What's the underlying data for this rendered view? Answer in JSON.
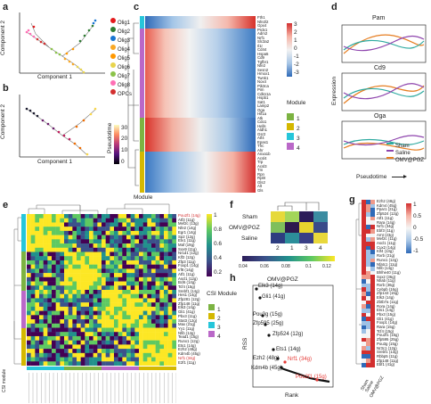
{
  "panels": {
    "a": {
      "letter": "a",
      "x_label": "Component 1",
      "y_label": "Component 2",
      "legend": [
        {
          "name": "Olig1",
          "color": "#e41a1c"
        },
        {
          "name": "Olig2",
          "color": "#2e7d32"
        },
        {
          "name": "Olig3",
          "color": "#1976d2"
        },
        {
          "name": "Olig4",
          "color": "#f9a825"
        },
        {
          "name": "Olig5",
          "color": "#ff9800"
        },
        {
          "name": "Olig6",
          "color": "#e8d44d"
        },
        {
          "name": "Olig7",
          "color": "#8bc34a"
        },
        {
          "name": "Olig8",
          "color": "#ff6fb5"
        },
        {
          "name": "OPCs",
          "color": "#d32f2f"
        }
      ]
    },
    "b": {
      "letter": "b",
      "x_label": "Component 1",
      "y_label": "Component 2",
      "colorbar_title": "Pseudotime",
      "colorbar_ticks": [
        "0",
        "10",
        "20",
        "30"
      ]
    },
    "c": {
      "letter": "c",
      "module_axis_label": "Module",
      "colorbar_ticks": [
        "3",
        "2",
        "1",
        "0",
        "-1",
        "-2",
        "-3"
      ],
      "legend_title": "Module",
      "modules": [
        {
          "name": "1",
          "color": "#7cb342"
        },
        {
          "name": "2",
          "color": "#d4b800"
        },
        {
          "name": "3",
          "color": "#26c6da"
        },
        {
          "name": "4",
          "color": "#ba68c8"
        }
      ],
      "genes": [
        "Fth1",
        "Nfe2l2",
        "Gpx4",
        "Prdx1",
        "Adm2",
        "Nrf1",
        "Slc3a2",
        "Il1r",
        "Cd44",
        "Hspa5",
        "Cd9",
        "Tgfbr1",
        "Nfe2",
        "Sesn2",
        "Hmox1",
        "Twnk1",
        "Nox4",
        "Pik3ca",
        "Pim",
        "Cdkn1a",
        "Hspb1",
        "Sat1",
        "Lamp2",
        "Oga",
        "Hif1a",
        "Atk",
        "Cdo1",
        "Hells",
        "Aldh1",
        "Gsr2",
        "Atf4",
        "Epas1",
        "Tfrc",
        "Ahr",
        "Anxa1b",
        "Acsl4",
        "Trp",
        "Acsl3",
        "Tm",
        "Rpn",
        "Rpl8",
        "Gls2",
        "Alt",
        "Gls"
      ]
    },
    "d": {
      "letter": "d",
      "titles": [
        "Pam",
        "Cd9",
        "Oga"
      ],
      "y_label": "Expression",
      "x_label": "Pseudotime",
      "legend": [
        {
          "name": "Sham",
          "color": "#2eaaa0"
        },
        {
          "name": "Saline",
          "color": "#8e44ad"
        },
        {
          "name": "OMV@PGZ",
          "color": "#e67e22"
        }
      ]
    },
    "e": {
      "letter": "e",
      "colorbar_ticks": [
        "1",
        "0.8",
        "0.6",
        "0.4",
        "0.2"
      ],
      "legend_title": "CSI Module",
      "modules": [
        {
          "name": "1",
          "color": "#7cb342"
        },
        {
          "name": "2",
          "color": "#d4b800"
        },
        {
          "name": "3",
          "color": "#26c6da"
        },
        {
          "name": "4",
          "color": "#ba68c8"
        }
      ],
      "axis_label": "CSI module",
      "right_labels": [
        "Pou2f1 (14g)",
        "Atf3 (11g)",
        "Mef2c (13g)",
        "Nfe2 (14g)",
        "Egr1 (14g)",
        "Sp2 (12g)",
        "Etv1 (11g)",
        "Maf (19g)",
        "Sox9 (11g)",
        "Nr1d1 (12g)",
        "Klf2 (12g)",
        "Zfp3 (11g)",
        "Foxp1 (14g)",
        "Irf8 (14g)",
        "Atf1 (11g)",
        "Ascl1 (12g)",
        "Bcl6 (14g)",
        "Tcf4 (15g)",
        "Srebf1 (14g)",
        "Hes1 (14g)",
        "Zfp281 (12g)",
        "Zfp148 (11g)",
        "Elk3 (14g)",
        "Gli1 (41g)",
        "Pbx3 (11g)",
        "Stat3 (12g)",
        "Max (21g)",
        "Yy1 (11g)",
        "Nfib (14g)",
        "Tead1 (15g)",
        "Runx1 (12g)",
        "Ets1 (14g)",
        "Ezh2 (48g)",
        "Kdm4b (45g)",
        "Nrf1 (34g)",
        "E2f1 (11g)"
      ]
    },
    "f": {
      "letter": "f",
      "rows": [
        "Sham",
        "OMV@PGZ",
        "Saline"
      ],
      "cols": [
        "2",
        "1",
        "3",
        "4"
      ],
      "colorbar_ticks": [
        "0.04",
        "0.06",
        "0.08",
        "0.1",
        "0.12"
      ]
    },
    "g": {
      "letter": "g",
      "colorbar_ticks": [
        "1",
        "0.5",
        "0",
        "-0.5",
        "-1"
      ],
      "columns": [
        "Sham",
        "Saline",
        "OMV@PGZ"
      ],
      "genes": [
        "Ezh2 (48g)",
        "Kdm4 (45g)",
        "Ppar1 (21g)",
        "Zfp524 (12g)",
        "Atf1 (11g)",
        "Rara (14g)",
        "Nrf1 (34g)",
        "Ebf3 (11g)",
        "Arnt (23g)",
        "Mef2c (11g)",
        "Ascl1 (11g)",
        "Cux2 (14g)",
        "Klf4 (13g)",
        "Rxrb (21g)",
        "Runx1 (12g)",
        "Nfatc1 (11g)",
        "Nfib (14g)",
        "Bhlhe40 (11g)",
        "Sox2 (36g)",
        "Nfiab (11g)",
        "Rxrb (36g)",
        "Cebpb (16g)",
        "Zfp143 (15g)",
        "Elk3 (14g)",
        "Zbtb7a (11g)",
        "Rora (14g)",
        "Ets1 (14g)",
        "Pbx3 (15g)",
        "Gli1 (41g)",
        "Foxp1 (14g)",
        "Rara (15g)",
        "Tcf4 (15g)",
        "Pou2f1 (15g)",
        "Zfp595 (25g)",
        "Pou3g (15g)",
        "Nr3c1 (12g)",
        "Srebf1 (13g)",
        "Rbbp5 (11g)",
        "Zfp148 (11g)",
        "Ebf1 (41g)"
      ]
    },
    "h": {
      "letter": "h",
      "title": "OMV@PGZ",
      "y_label": "RSS",
      "x_label": "Rank",
      "labels": [
        {
          "text": "Elk3 (14g)",
          "color": "#111"
        },
        {
          "text": "Gli1 (41g)",
          "color": "#111"
        },
        {
          "text": "Pou3g (15g)",
          "color": "#111"
        },
        {
          "text": "Zfp595 (25g)",
          "color": "#111"
        },
        {
          "text": "Zfp524 (12g)",
          "color": "#111"
        },
        {
          "text": "Ets1 (14g)",
          "color": "#111"
        },
        {
          "text": "Ezh2 (48g)",
          "color": "#111"
        },
        {
          "text": "Nrf1 (34g)",
          "color": "#e53935"
        },
        {
          "text": "Kdm4b (45g)",
          "color": "#111"
        },
        {
          "text": "Pou2f1 (15g)",
          "color": "#e53935"
        }
      ]
    }
  }
}
